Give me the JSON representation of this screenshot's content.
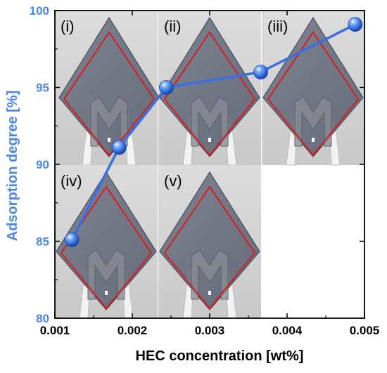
{
  "colors": {
    "series": "#3a6fe0",
    "ylabel": "#4a86e8",
    "outline": "#d42020",
    "axis": "#000000"
  },
  "chart_data": {
    "type": "line",
    "xlabel": "HEC concentration [wt%]",
    "ylabel": "Adsorption degree [%]",
    "xlim": [
      0.001,
      0.005
    ],
    "ylim": [
      80,
      100
    ],
    "x_ticks": [
      "0.001",
      "0.002",
      "0.003",
      "0.004",
      "0.005"
    ],
    "y_ticks": [
      "80",
      "85",
      "90",
      "95",
      "100"
    ],
    "grid": false,
    "series": [
      {
        "marker": "sphere",
        "x": [
          0.00122,
          0.00183,
          0.00244,
          0.00366,
          0.00488
        ],
        "y": [
          85.1,
          91.1,
          95.0,
          96.0,
          99.1
        ]
      }
    ],
    "panels": [
      {
        "label": "(i)"
      },
      {
        "label": "(ii)"
      },
      {
        "label": "(iii)"
      },
      {
        "label": "(iv)"
      },
      {
        "label": "(v)"
      }
    ]
  }
}
